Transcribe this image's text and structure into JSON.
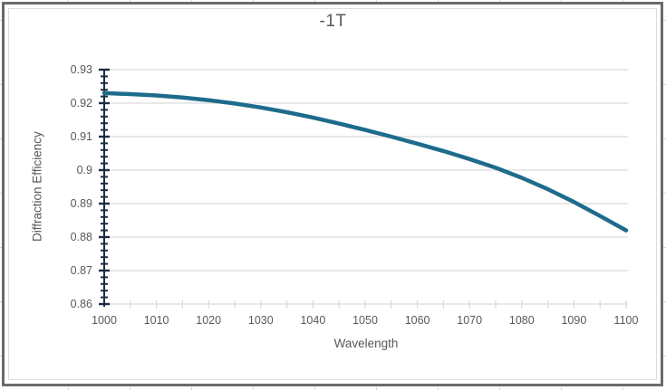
{
  "chart_data": {
    "type": "line",
    "title": "-1T",
    "xlabel": "Wavelength",
    "ylabel": "Diffraction Efficiency",
    "xlim": [
      1000,
      1100
    ],
    "ylim": [
      0.86,
      0.93
    ],
    "x_major_step": 10,
    "x_minor_step": 5,
    "y_major_step": 0.01,
    "y_minor_step": 0.002,
    "grid": "horizontal-major-only",
    "legend": "none",
    "x_tick_labels": [
      "1000",
      "1010",
      "1020",
      "1030",
      "1040",
      "1050",
      "1060",
      "1070",
      "1080",
      "1090",
      "1100"
    ],
    "y_tick_labels": [
      "0.93",
      "0.92",
      "0.91",
      "0.9",
      "0.89",
      "0.88",
      "0.87",
      "0.86"
    ],
    "x": [
      1000,
      1005,
      1010,
      1015,
      1020,
      1025,
      1030,
      1035,
      1040,
      1045,
      1050,
      1055,
      1060,
      1065,
      1070,
      1075,
      1080,
      1085,
      1090,
      1095,
      1100
    ],
    "series": [
      {
        "name": "-1T",
        "values": [
          0.923,
          0.9227,
          0.9223,
          0.9217,
          0.9209,
          0.9199,
          0.9187,
          0.9173,
          0.9157,
          0.9139,
          0.912,
          0.91,
          0.9079,
          0.9057,
          0.9033,
          0.9007,
          0.8977,
          0.8943,
          0.8905,
          0.8863,
          0.882
        ]
      }
    ],
    "colors": {
      "series_line": "#1e6b8c",
      "y_axis": "#1b2b44",
      "x_axis": "#d9d9d9",
      "gridline": "#d9d9d9",
      "tick_text": "#595959",
      "title_text": "#595959",
      "chart_border": "#6b6b6b",
      "inner_border": "#dcdcdc",
      "background": "#ffffff"
    }
  }
}
